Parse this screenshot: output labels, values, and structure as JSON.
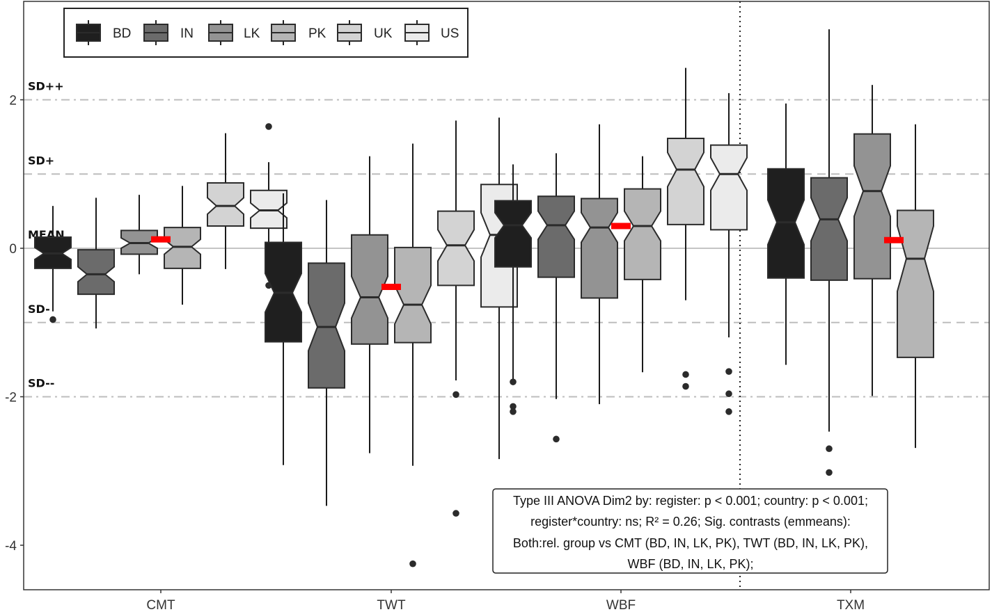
{
  "chart_data": {
    "type": "boxplot",
    "categories": [
      "CMT",
      "TWT",
      "WBF",
      "TXM"
    ],
    "groups": [
      "BD",
      "IN",
      "LK",
      "PK",
      "UK",
      "US"
    ],
    "group_colors": [
      "#1f1f1f",
      "#6b6b6b",
      "#939393",
      "#b5b5b5",
      "#d3d3d3",
      "#ebebeb"
    ],
    "ylim": [
      -4.6,
      3.3
    ],
    "yticks": [
      -4,
      -2,
      0,
      2
    ],
    "reference_lines": [
      {
        "label": "SD++",
        "value": 2,
        "style": "dashdot"
      },
      {
        "label": "SD+",
        "value": 1,
        "style": "dashed"
      },
      {
        "label": "MEAN",
        "value": 0,
        "style": "solid"
      },
      {
        "label": "SD-",
        "value": -1,
        "style": "dashed"
      },
      {
        "label": "SD--",
        "value": -2,
        "style": "dashdot"
      }
    ],
    "divider_after_category": "WBF",
    "legend_position": "top-left",
    "boxes": [
      {
        "category": "CMT",
        "group": "BD",
        "min": -0.85,
        "q1": -0.27,
        "median": -0.07,
        "q3": 0.15,
        "max": 0.57,
        "notch_lo": -0.15,
        "notch_hi": 0.01,
        "outliers": [
          -0.96
        ]
      },
      {
        "category": "CMT",
        "group": "IN",
        "min": -1.08,
        "q1": -0.62,
        "median": -0.35,
        "q3": -0.02,
        "max": 0.68,
        "notch_lo": -0.45,
        "notch_hi": -0.25,
        "outliers": []
      },
      {
        "category": "CMT",
        "group": "LK",
        "min": -0.35,
        "q1": -0.08,
        "median": 0.07,
        "q3": 0.24,
        "max": 0.72,
        "notch_lo": 0.0,
        "notch_hi": 0.14,
        "outliers": []
      },
      {
        "category": "CMT",
        "group": "PK",
        "min": -0.76,
        "q1": -0.27,
        "median": 0.02,
        "q3": 0.28,
        "max": 0.84,
        "notch_lo": -0.08,
        "notch_hi": 0.12,
        "outliers": []
      },
      {
        "category": "CMT",
        "group": "UK",
        "min": -0.28,
        "q1": 0.3,
        "median": 0.57,
        "q3": 0.88,
        "max": 1.55,
        "notch_lo": 0.46,
        "notch_hi": 0.68,
        "outliers": []
      },
      {
        "category": "CMT",
        "group": "US",
        "min": -0.25,
        "q1": 0.27,
        "median": 0.51,
        "q3": 0.78,
        "max": 1.16,
        "notch_lo": 0.41,
        "notch_hi": 0.61,
        "outliers": [
          1.64,
          -0.5
        ]
      },
      {
        "category": "TWT",
        "group": "BD",
        "min": -2.92,
        "q1": -1.26,
        "median": -0.6,
        "q3": 0.08,
        "max": 0.74,
        "notch_lo": -0.86,
        "notch_hi": -0.34,
        "outliers": []
      },
      {
        "category": "TWT",
        "group": "IN",
        "min": -3.47,
        "q1": -1.88,
        "median": -1.06,
        "q3": -0.2,
        "max": 0.65,
        "notch_lo": -1.38,
        "notch_hi": -0.74,
        "outliers": []
      },
      {
        "category": "TWT",
        "group": "LK",
        "min": -2.76,
        "q1": -1.29,
        "median": -0.66,
        "q3": 0.18,
        "max": 1.24,
        "notch_lo": -0.94,
        "notch_hi": -0.38,
        "outliers": []
      },
      {
        "category": "TWT",
        "group": "PK",
        "min": -2.93,
        "q1": -1.27,
        "median": -0.76,
        "q3": 0.01,
        "max": 1.41,
        "notch_lo": -1.02,
        "notch_hi": -0.5,
        "outliers": [
          -4.25
        ]
      },
      {
        "category": "TWT",
        "group": "UK",
        "min": -1.78,
        "q1": -0.5,
        "median": 0.04,
        "q3": 0.5,
        "max": 1.72,
        "notch_lo": -0.17,
        "notch_hi": 0.25,
        "outliers": [
          -1.97,
          -3.57
        ]
      },
      {
        "category": "TWT",
        "group": "US",
        "min": -2.84,
        "q1": -0.79,
        "median": 0.18,
        "q3": 0.86,
        "max": 1.76,
        "notch_lo": -0.12,
        "notch_hi": 0.48,
        "outliers": []
      },
      {
        "category": "WBF",
        "group": "BD",
        "min": -1.8,
        "q1": -0.25,
        "median": 0.31,
        "q3": 0.64,
        "max": 1.13,
        "notch_lo": 0.14,
        "notch_hi": 0.48,
        "outliers": [
          -1.8,
          -2.13,
          -2.2
        ]
      },
      {
        "category": "WBF",
        "group": "IN",
        "min": -2.03,
        "q1": -0.39,
        "median": 0.31,
        "q3": 0.7,
        "max": 1.28,
        "notch_lo": 0.12,
        "notch_hi": 0.5,
        "outliers": [
          -2.57
        ]
      },
      {
        "category": "WBF",
        "group": "LK",
        "min": -2.1,
        "q1": -0.67,
        "median": 0.28,
        "q3": 0.67,
        "max": 1.67,
        "notch_lo": 0.08,
        "notch_hi": 0.48,
        "outliers": []
      },
      {
        "category": "WBF",
        "group": "PK",
        "min": -1.67,
        "q1": -0.42,
        "median": 0.3,
        "q3": 0.8,
        "max": 1.24,
        "notch_lo": 0.1,
        "notch_hi": 0.5,
        "outliers": []
      },
      {
        "category": "WBF",
        "group": "UK",
        "min": -0.7,
        "q1": 0.32,
        "median": 1.06,
        "q3": 1.48,
        "max": 2.43,
        "notch_lo": 0.83,
        "notch_hi": 1.29,
        "outliers": [
          -1.7,
          -1.86
        ]
      },
      {
        "category": "WBF",
        "group": "US",
        "min": -1.2,
        "q1": 0.25,
        "median": 1.0,
        "q3": 1.39,
        "max": 2.09,
        "notch_lo": 0.78,
        "notch_hi": 1.22,
        "outliers": [
          -1.66,
          -1.96,
          -2.2
        ]
      },
      {
        "category": "TXM",
        "group": "BD",
        "min": -1.57,
        "q1": -0.4,
        "median": 0.35,
        "q3": 1.07,
        "max": 1.95,
        "notch_lo": 0.05,
        "notch_hi": 0.65,
        "outliers": []
      },
      {
        "category": "TXM",
        "group": "IN",
        "min": -2.47,
        "q1": -0.43,
        "median": 0.39,
        "q3": 0.95,
        "max": 2.95,
        "notch_lo": 0.1,
        "notch_hi": 0.68,
        "outliers": [
          -2.7,
          -3.02
        ]
      },
      {
        "category": "TXM",
        "group": "LK",
        "min": -1.99,
        "q1": -0.41,
        "median": 0.77,
        "q3": 1.54,
        "max": 2.2,
        "notch_lo": 0.43,
        "notch_hi": 1.11,
        "outliers": []
      },
      {
        "category": "TXM",
        "group": "PK",
        "min": -2.69,
        "q1": -1.47,
        "median": -0.14,
        "q3": 0.51,
        "max": 1.67,
        "notch_lo": -0.58,
        "notch_hi": 0.3,
        "outliers": []
      }
    ],
    "group_means": [
      {
        "category": "CMT",
        "value": 0.12
      },
      {
        "category": "TWT",
        "value": -0.52
      },
      {
        "category": "WBF",
        "value": 0.3
      },
      {
        "category": "TXM",
        "value": 0.11
      }
    ],
    "annotation_lines": [
      "Type III ANOVA Dim2 by: register: p < 0.001; country: p < 0.001;",
      "register*country: ns; R² = 0.26; Sig. contrasts (emmeans):",
      "Both:rel. group vs CMT (BD, IN, LK, PK), TWT (BD, IN, LK, PK),",
      "WBF (BD, IN, LK, PK);"
    ],
    "mean_marker_color": "#ff0000",
    "reference_line_color": "#bdbdbd"
  }
}
